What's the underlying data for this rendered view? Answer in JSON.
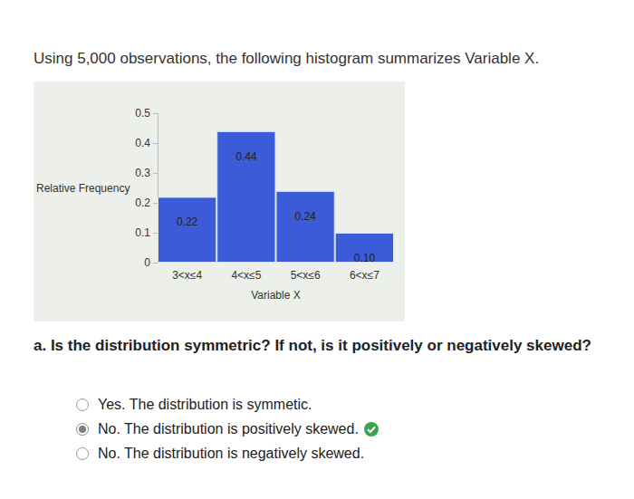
{
  "intro": "Using 5,000 observations, the following histogram summarizes Variable X.",
  "chart_data": {
    "type": "bar",
    "categories": [
      "3<x≤4",
      "4<x≤5",
      "5<x≤6",
      "6<x≤7"
    ],
    "values": [
      0.22,
      0.44,
      0.24,
      0.1
    ],
    "value_labels": [
      "0.22",
      "0.44",
      "0.24",
      "0.10"
    ],
    "color": "#3b5bd8",
    "x_label": "Variable X",
    "y_label": "Relative Frequency",
    "ylim": [
      0,
      0.5
    ],
    "yticks": [
      0,
      0.1,
      0.2,
      0.3,
      0.4,
      0.5
    ],
    "grid": false,
    "data_labels": true
  },
  "question": "a. Is the distribution symmetric? If not, is it positively or negatively skewed?",
  "options": [
    {
      "text": "Yes. The distribution is symmetic.",
      "selected": false,
      "correct": false
    },
    {
      "text": "No. The distribution is positively skewed.",
      "selected": true,
      "correct": true
    },
    {
      "text": "No. The distribution is negatively skewed.",
      "selected": false,
      "correct": false
    }
  ]
}
